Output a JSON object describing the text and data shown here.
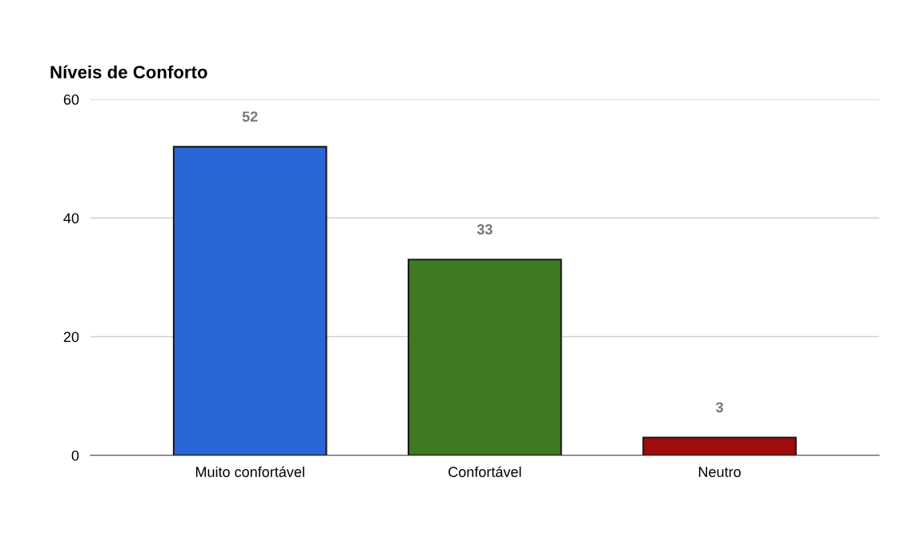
{
  "chart_data": {
    "type": "bar",
    "title": "Níveis de Conforto",
    "categories": [
      "Muito confortável",
      "Confortável",
      "Neutro"
    ],
    "values": [
      52,
      33,
      3
    ],
    "colors": [
      "#2a66d6",
      "#3f7a23",
      "#a00b0b"
    ],
    "ylim": [
      0,
      60
    ],
    "yticks": [
      0,
      20,
      40,
      60
    ],
    "grid": "y",
    "data_labels": true
  }
}
